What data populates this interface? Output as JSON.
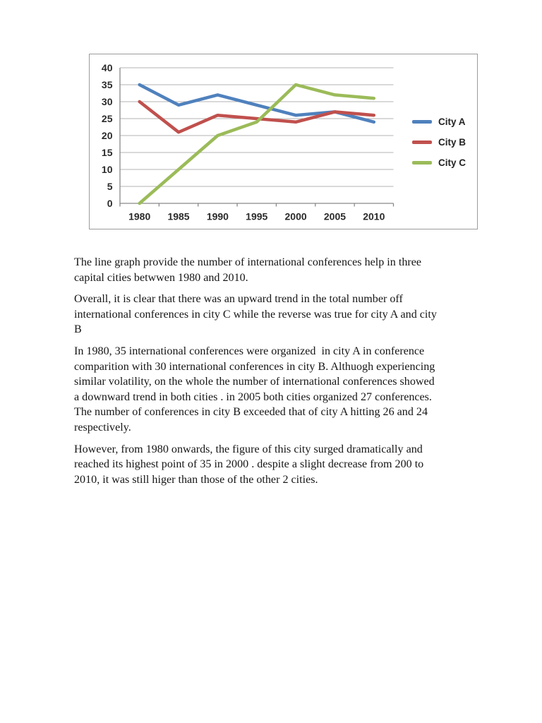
{
  "chart_data": {
    "type": "line",
    "title": "",
    "x_labels": [
      "1980",
      "1985",
      "1990",
      "1995",
      "2000",
      "2005",
      "2010"
    ],
    "series": [
      {
        "name": "City A",
        "color": "#4f81bd",
        "values": [
          35,
          29,
          32,
          29,
          26,
          27,
          24
        ]
      },
      {
        "name": "City B",
        "color": "#c0504d",
        "values": [
          30,
          21,
          26,
          25,
          24,
          27,
          26
        ]
      },
      {
        "name": "City C",
        "color": "#9bbb59",
        "values": [
          0,
          10,
          20,
          24,
          35,
          32,
          31
        ]
      }
    ],
    "xlabel": "",
    "ylabel": "",
    "ylim": [
      0,
      40
    ],
    "yticks": [
      0,
      5,
      10,
      15,
      20,
      25,
      30,
      35,
      40
    ],
    "grid": true,
    "legend_position": "right",
    "grid_color": "#b3b3b3",
    "axis_color": "#898989",
    "frame_color": "#9b9b9b",
    "label_color": "#2b2b2b"
  },
  "essay": {
    "text_color": "#161616",
    "paragraphs": [
      {
        "lines": [
          "The line graph provide the number of international conferences help in three",
          "capital cities betwwen 1980 and 2010."
        ]
      },
      {
        "lines": [
          "Overall, it is clear that there was an upward trend in the total number off",
          "international conferences in city C while the reverse was true for city A and city",
          "B"
        ]
      },
      {
        "lines": [
          "In 1980, 35 international conferences were organized  in city A in conference",
          "comparition with 30 international conferences in city B. Althuogh experiencing",
          "similar volatility, on the whole the number of international conferences showed",
          "a downward trend in both cities . in 2005 both cities organized 27 conferences.",
          "The number of conferences in city B exceeded that of city A hitting 26 and 24",
          "respectively."
        ]
      },
      {
        "lines": [
          "However, from 1980 onwards, the figure of this city surged dramatically and",
          "reached its highest point of 35 in 2000 . despite a slight decrease from 200 to",
          "2010, it was still higer than those of the other 2 cities."
        ]
      }
    ]
  }
}
